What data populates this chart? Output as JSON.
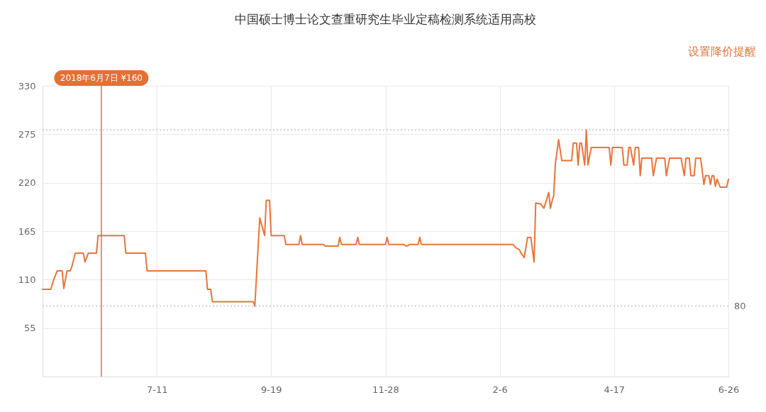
{
  "chart_data": {
    "type": "line",
    "title": "中国硕士博士论文查重研究生毕业定稿检测系统适用高校",
    "annotations": [
      "设置降价提醒"
    ],
    "x": [
      "2018-05-02",
      "2018-05-07",
      "2018-05-09",
      "2018-05-11",
      "2018-05-14",
      "2018-05-15",
      "2018-05-17",
      "2018-05-19",
      "2018-05-20",
      "2018-05-22",
      "2018-05-27",
      "2018-05-28",
      "2018-05-30",
      "2018-06-04",
      "2018-06-05",
      "2018-06-21",
      "2018-06-22",
      "2018-07-04",
      "2018-07-05",
      "2018-08-10",
      "2018-08-11",
      "2018-08-13",
      "2018-08-14",
      "2018-09-08",
      "2018-09-09",
      "2018-09-12",
      "2018-09-15",
      "2018-09-16",
      "2018-09-18",
      "2018-09-19",
      "2018-09-27",
      "2018-09-28",
      "2018-10-06",
      "2018-10-07",
      "2018-10-08",
      "2018-10-21",
      "2018-10-22",
      "2018-10-30",
      "2018-10-31",
      "2018-11-01",
      "2018-11-10",
      "2018-11-11",
      "2018-11-12",
      "2018-11-28",
      "2018-11-29",
      "2018-11-30",
      "2018-12-09",
      "2018-12-11",
      "2018-12-13",
      "2018-12-18",
      "2018-12-19",
      "2018-12-20",
      "2019-02-14",
      "2019-02-16",
      "2019-02-18",
      "2019-02-19",
      "2019-02-21",
      "2019-02-23",
      "2019-02-25",
      "2019-02-27",
      "2019-02-28",
      "2019-03-03",
      "2019-03-05",
      "2019-03-08",
      "2019-03-09",
      "2019-03-10",
      "2019-03-11",
      "2019-03-12",
      "2019-03-14",
      "2019-03-16",
      "2019-03-22",
      "2019-03-23",
      "2019-03-25",
      "2019-03-26",
      "2019-03-27",
      "2019-03-28",
      "2019-03-30",
      "2019-03-31",
      "2019-04-01",
      "2019-04-03",
      "2019-04-14",
      "2019-04-15",
      "2019-04-16",
      "2019-04-22",
      "2019-04-23",
      "2019-04-25",
      "2019-04-26",
      "2019-04-27",
      "2019-04-29",
      "2019-04-30",
      "2019-05-02",
      "2019-05-03",
      "2019-05-04",
      "2019-05-10",
      "2019-05-11",
      "2019-05-13",
      "2019-05-18",
      "2019-05-19",
      "2019-05-21",
      "2019-05-28",
      "2019-05-30",
      "2019-05-31",
      "2019-06-02",
      "2019-06-03",
      "2019-06-05",
      "2019-06-06",
      "2019-06-09",
      "2019-06-11",
      "2019-06-12",
      "2019-06-14",
      "2019-06-15",
      "2019-06-16",
      "2019-06-17",
      "2019-06-18",
      "2019-06-19",
      "2019-06-21",
      "2019-06-25",
      "2019-06-26"
    ],
    "series": [
      {
        "color": "#e8743b",
        "values": [
          99,
          99,
          111,
          120,
          120,
          100,
          120,
          120,
          125,
          140,
          140,
          130,
          140,
          140,
          160,
          160,
          140,
          140,
          120,
          120,
          99,
          99,
          85,
          85,
          80,
          180,
          160,
          200,
          200,
          160,
          160,
          150,
          150,
          160,
          150,
          150,
          148,
          148,
          158,
          150,
          150,
          158,
          150,
          150,
          158,
          150,
          150,
          148,
          150,
          150,
          158,
          150,
          150,
          146,
          144,
          140,
          135,
          158,
          158,
          130,
          197,
          196,
          191,
          209,
          191,
          199,
          205,
          241,
          269,
          245,
          245,
          265,
          265,
          240,
          265,
          265,
          240,
          280,
          240,
          260,
          260,
          240,
          260,
          260,
          240,
          240,
          260,
          260,
          240,
          260,
          260,
          228,
          248,
          248,
          228,
          248,
          248,
          228,
          248,
          248,
          228,
          248,
          248,
          228,
          228,
          248,
          248,
          218,
          228,
          228,
          218,
          228,
          228,
          216,
          224,
          215,
          215,
          224
        ]
      }
    ],
    "xlim": [
      "2018-05-02",
      "2019-06-26"
    ],
    "xticks": [
      {
        "value": "2018-07-11",
        "label": "7-11"
      },
      {
        "value": "2018-09-19",
        "label": "9-19"
      },
      {
        "value": "2018-11-28",
        "label": "11-28"
      },
      {
        "value": "2019-02-06",
        "label": "2-6"
      },
      {
        "value": "2019-04-17",
        "label": "4-17"
      },
      {
        "value": "2019-06-26",
        "label": "6-26"
      }
    ],
    "ylim": [
      0,
      330
    ],
    "yticks": [
      55,
      110,
      165,
      220,
      275,
      330
    ],
    "grid": true,
    "marker": "none",
    "line_style": "solid",
    "ref_lines": [
      {
        "axis": "y",
        "value": 280,
        "color": "#aaaaaa",
        "line_style": "dotted"
      },
      {
        "axis": "y",
        "value": 80,
        "label": "80",
        "color": "#aaaaaa",
        "line_style": "dotted"
      },
      {
        "axis": "x",
        "value": "2018-06-07",
        "label": "2018年6月7日 ¥160",
        "color": "#e56f35",
        "line_style": "solid"
      }
    ]
  }
}
